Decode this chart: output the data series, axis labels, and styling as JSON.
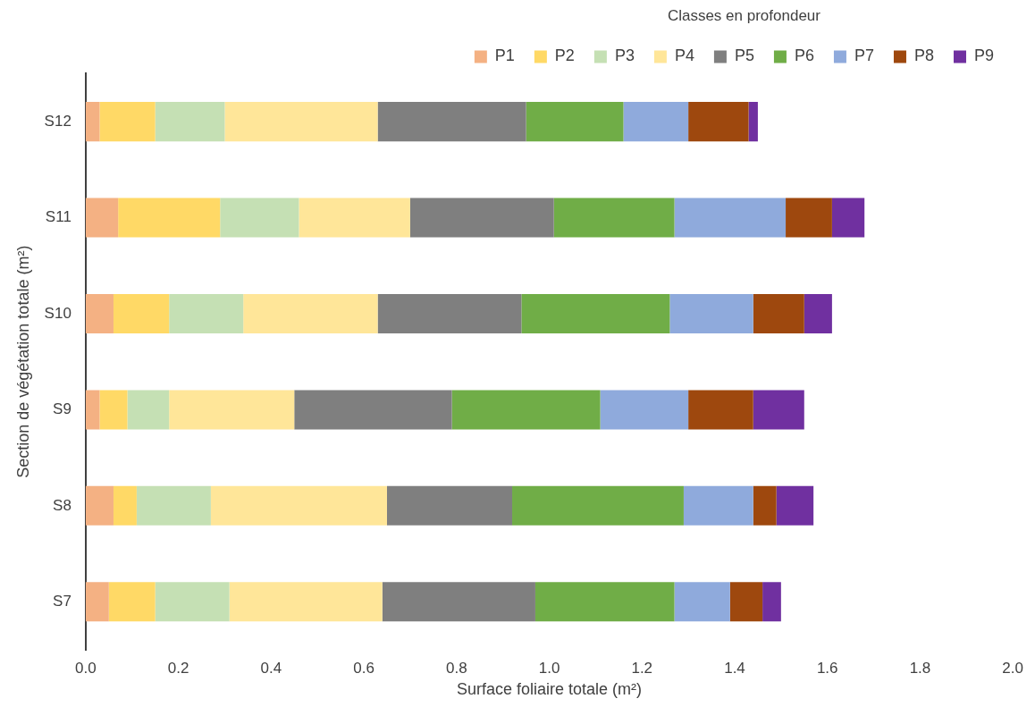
{
  "chart_data": {
    "type": "bar",
    "orientation": "horizontal",
    "stacked": true,
    "xlabel": "Surface foliaire totale (m²)",
    "ylabel": "Section de végétation totale (m²)",
    "legend_title": "Classes en profondeur",
    "legend": "top right",
    "grid": false,
    "categories": [
      "S12",
      "S11",
      "S10",
      "S9",
      "S8",
      "S7"
    ],
    "xlim": [
      0,
      2
    ],
    "xticks": [
      {
        "value": 0,
        "label": "0.0"
      },
      {
        "value": 0.2,
        "label": "0.2"
      },
      {
        "value": 0.4,
        "label": "0.4"
      },
      {
        "value": 0.6,
        "label": "0.6"
      },
      {
        "value": 0.8,
        "label": "0.8"
      },
      {
        "value": 1,
        "label": "1.0"
      },
      {
        "value": 1.2,
        "label": "1.2"
      },
      {
        "value": 1.4,
        "label": "1.4"
      },
      {
        "value": 1.6,
        "label": "1.6"
      },
      {
        "value": 1.8,
        "label": "1.8"
      },
      {
        "value": 2,
        "label": "2.0"
      }
    ],
    "series": [
      {
        "name": "P1",
        "color": "#f4b183",
        "values": [
          0.03,
          0.07,
          0.06,
          0.03,
          0.06,
          0.05
        ]
      },
      {
        "name": "P2",
        "color": "#ffd966",
        "values": [
          0.12,
          0.22,
          0.12,
          0.06,
          0.05,
          0.1
        ]
      },
      {
        "name": "P3",
        "color": "#c5e0b4",
        "values": [
          0.15,
          0.17,
          0.16,
          0.09,
          0.16,
          0.16
        ]
      },
      {
        "name": "P4",
        "color": "#ffe699",
        "values": [
          0.33,
          0.24,
          0.29,
          0.27,
          0.38,
          0.33
        ]
      },
      {
        "name": "P5",
        "color": "#7f7f7f",
        "values": [
          0.32,
          0.31,
          0.31,
          0.34,
          0.27,
          0.33
        ]
      },
      {
        "name": "P6",
        "color": "#70ad47",
        "values": [
          0.21,
          0.26,
          0.32,
          0.32,
          0.37,
          0.3
        ]
      },
      {
        "name": "P7",
        "color": "#8faadc",
        "values": [
          0.14,
          0.24,
          0.18,
          0.19,
          0.15,
          0.12
        ]
      },
      {
        "name": "P8",
        "color": "#9e480e",
        "values": [
          0.13,
          0.1,
          0.11,
          0.14,
          0.05,
          0.07
        ]
      },
      {
        "name": "P9",
        "color": "#7030a0",
        "values": [
          0.02,
          0.07,
          0.06,
          0.11,
          0.08,
          0.04
        ]
      }
    ]
  }
}
